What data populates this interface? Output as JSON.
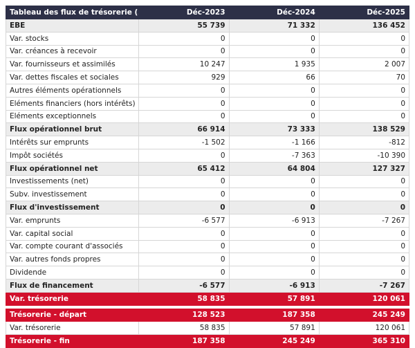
{
  "header": {
    "title": "Tableau des flux de trésorerie (£)",
    "columns": [
      "Déc-2023",
      "Déc-2024",
      "Déc-2025"
    ]
  },
  "table": {
    "rows": [
      {
        "label": "EBE",
        "values": [
          "55 739",
          "71 332",
          "136 452"
        ]
      },
      {
        "label": "Var. stocks",
        "values": [
          "0",
          "0",
          "0"
        ]
      },
      {
        "label": "Var. créances à recevoir",
        "values": [
          "0",
          "0",
          "0"
        ]
      },
      {
        "label": "Var. fournisseurs et assimilés",
        "values": [
          "10 247",
          "1 935",
          "2 007"
        ]
      },
      {
        "label": "Var. dettes fiscales et sociales",
        "values": [
          "929",
          "66",
          "70"
        ]
      },
      {
        "label": "Autres éléments opérationnels",
        "values": [
          "0",
          "0",
          "0"
        ]
      },
      {
        "label": "Eléments financiers (hors intérêts)",
        "values": [
          "0",
          "0",
          "0"
        ]
      },
      {
        "label": "Eléments exceptionnels",
        "values": [
          "0",
          "0",
          "0"
        ]
      },
      {
        "label": "Flux opérationnel brut",
        "values": [
          "66 914",
          "73 333",
          "138 529"
        ]
      },
      {
        "label": "Intérêts sur emprunts",
        "values": [
          "-1 502",
          "-1 166",
          "-812"
        ]
      },
      {
        "label": "Impôt sociétés",
        "values": [
          "0",
          "-7 363",
          "-10 390"
        ]
      },
      {
        "label": "Flux opérationnel net",
        "values": [
          "65 412",
          "64 804",
          "127 327"
        ]
      },
      {
        "label": "Investissements (net)",
        "values": [
          "0",
          "0",
          "0"
        ]
      },
      {
        "label": "Subv. investissement",
        "values": [
          "0",
          "0",
          "0"
        ]
      },
      {
        "label": "Flux d'investissement",
        "values": [
          "0",
          "0",
          "0"
        ]
      },
      {
        "label": "Var. emprunts",
        "values": [
          "-6 577",
          "-6 913",
          "-7 267"
        ]
      },
      {
        "label": "Var. capital social",
        "values": [
          "0",
          "0",
          "0"
        ]
      },
      {
        "label": "Var. compte courant d'associés",
        "values": [
          "0",
          "0",
          "0"
        ]
      },
      {
        "label": "Var. autres fonds propres",
        "values": [
          "0",
          "0",
          "0"
        ]
      },
      {
        "label": "Dividende",
        "values": [
          "0",
          "0",
          "0"
        ]
      },
      {
        "label": "Flux de financement",
        "values": [
          "-6 577",
          "-6 913",
          "-7 267"
        ]
      },
      {
        "label": "Var. trésorerie",
        "values": [
          "58 835",
          "57 891",
          "120 061"
        ]
      }
    ]
  },
  "table2": {
    "rows": [
      {
        "label": "Trésorerie - départ",
        "values": [
          "128 523",
          "187 358",
          "245 249"
        ]
      },
      {
        "label": "Var. trésorerie",
        "values": [
          "58 835",
          "57 891",
          "120 061"
        ]
      },
      {
        "label": "Trésorerie - fin",
        "values": [
          "187 358",
          "245 249",
          "365 310"
        ]
      }
    ]
  }
}
